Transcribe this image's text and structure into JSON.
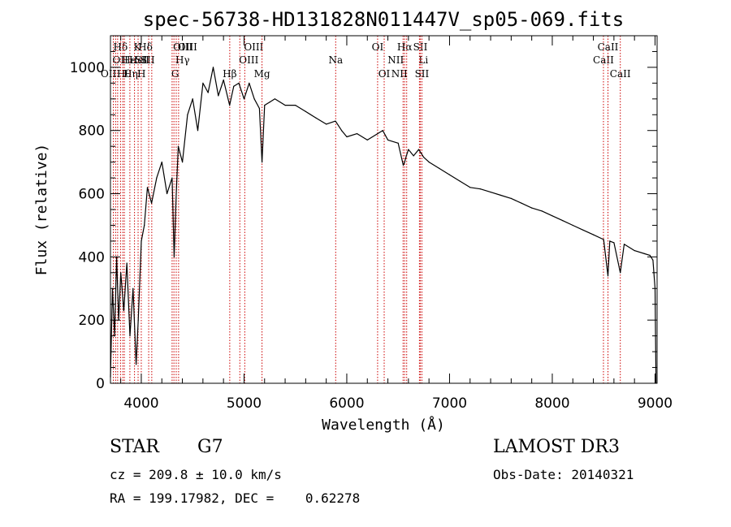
{
  "chart_data": {
    "type": "line",
    "title": "spec-56738-HD131828N011447V_sp05-069.fits",
    "xlabel": "Wavelength (Å)",
    "ylabel": "Flux (relative)",
    "xlim": [
      3700,
      9020
    ],
    "ylim": [
      0,
      1100
    ],
    "xticks": [
      4000,
      5000,
      6000,
      7000,
      8000,
      9000
    ],
    "yticks": [
      0,
      200,
      400,
      600,
      800,
      1000
    ],
    "series": [
      {
        "name": "flux",
        "x": [
          3700,
          3720,
          3740,
          3760,
          3780,
          3800,
          3830,
          3860,
          3890,
          3920,
          3950,
          3970,
          4000,
          4030,
          4060,
          4100,
          4150,
          4200,
          4250,
          4300,
          4320,
          4340,
          4360,
          4400,
          4450,
          4500,
          4550,
          4600,
          4650,
          4700,
          4750,
          4800,
          4860,
          4900,
          4950,
          5000,
          5050,
          5100,
          5150,
          5175,
          5200,
          5250,
          5300,
          5400,
          5500,
          5600,
          5700,
          5800,
          5890,
          5950,
          6000,
          6100,
          6200,
          6300,
          6350,
          6400,
          6500,
          6550,
          6563,
          6580,
          6600,
          6650,
          6700,
          6750,
          6800,
          6900,
          7000,
          7100,
          7200,
          7300,
          7400,
          7500,
          7600,
          7700,
          7800,
          7900,
          8000,
          8100,
          8200,
          8300,
          8400,
          8500,
          8542,
          8560,
          8600,
          8662,
          8700,
          8800,
          8900,
          8950,
          8980,
          9000,
          9010
        ],
        "values": [
          20,
          300,
          150,
          400,
          200,
          350,
          230,
          380,
          150,
          300,
          60,
          200,
          450,
          500,
          620,
          570,
          650,
          700,
          600,
          650,
          400,
          600,
          750,
          700,
          850,
          900,
          800,
          950,
          920,
          1000,
          910,
          960,
          880,
          940,
          950,
          900,
          950,
          900,
          870,
          700,
          880,
          890,
          900,
          880,
          880,
          860,
          840,
          820,
          830,
          800,
          780,
          790,
          770,
          790,
          800,
          770,
          760,
          690,
          700,
          720,
          740,
          720,
          740,
          715,
          700,
          680,
          660,
          640,
          620,
          615,
          605,
          595,
          585,
          570,
          555,
          545,
          530,
          515,
          500,
          485,
          470,
          455,
          340,
          450,
          445,
          350,
          440,
          420,
          410,
          405,
          390,
          300,
          0
        ]
      }
    ],
    "lines": [
      {
        "wl": 3728,
        "label": "OII",
        "row": 2,
        "align": "start"
      },
      {
        "wl": 3750,
        "label": "OII",
        "row": 3,
        "align": "end"
      },
      {
        "wl": 3770,
        "label": "Hθ",
        "row": 3,
        "align": "start"
      },
      {
        "wl": 3798,
        "label": "Hδ",
        "row": 1,
        "align": "middle"
      },
      {
        "wl": 3820,
        "label": "He",
        "row": 2,
        "align": "start"
      },
      {
        "wl": 3835,
        "label": "Hη",
        "row": 3,
        "align": "start"
      },
      {
        "wl": 3889,
        "label": "HeI",
        "row": 2,
        "align": "start"
      },
      {
        "wl": 3934,
        "label": "K",
        "row": 1,
        "align": "start"
      },
      {
        "wl": 3969,
        "label": "H",
        "row": 3,
        "align": "start"
      },
      {
        "wl": 4000,
        "label": "SII",
        "row": 2,
        "align": "start"
      },
      {
        "wl": 4072,
        "label": "SII",
        "row": 2,
        "align": "end"
      },
      {
        "wl": 4102,
        "label": "Hδ",
        "row": 1,
        "align": "end"
      },
      {
        "wl": 4300,
        "label": "G",
        "row": 3,
        "align": "start"
      },
      {
        "wl": 4318,
        "label": "OIII",
        "row": 1,
        "align": "start"
      },
      {
        "wl": 4340,
        "label": "Hγ",
        "row": 2,
        "align": "start"
      },
      {
        "wl": 4363,
        "label": "OIII",
        "row": 1,
        "align": "start"
      },
      {
        "wl": 4861,
        "label": "Hβ",
        "row": 3,
        "align": "middle"
      },
      {
        "wl": 4959,
        "label": "OIII",
        "row": 2,
        "align": "start"
      },
      {
        "wl": 5007,
        "label": "OIII",
        "row": 1,
        "align": "start"
      },
      {
        "wl": 5175,
        "label": "Mg",
        "row": 3,
        "align": "middle"
      },
      {
        "wl": 5892,
        "label": "Na",
        "row": 2,
        "align": "middle"
      },
      {
        "wl": 6300,
        "label": "OI",
        "row": 1,
        "align": "middle"
      },
      {
        "wl": 6364,
        "label": "OI",
        "row": 3,
        "align": "middle"
      },
      {
        "wl": 6548,
        "label": "NII",
        "row": 2,
        "align": "end"
      },
      {
        "wl": 6563,
        "label": "Hα",
        "row": 1,
        "align": "middle"
      },
      {
        "wl": 6583,
        "label": "NII",
        "row": 3,
        "align": "end"
      },
      {
        "wl": 6707,
        "label": "Li",
        "row": 2,
        "align": "start"
      },
      {
        "wl": 6716,
        "label": "SII",
        "row": 1,
        "align": "middle"
      },
      {
        "wl": 6731,
        "label": "SII",
        "row": 3,
        "align": "middle"
      },
      {
        "wl": 8498,
        "label": "CaII",
        "row": 2,
        "align": "middle"
      },
      {
        "wl": 8542,
        "label": "CaII",
        "row": 1,
        "align": "middle"
      },
      {
        "wl": 8662,
        "label": "CaII",
        "row": 3,
        "align": "middle"
      }
    ],
    "line_color": "#cc0000",
    "spectrum_color": "#000000"
  },
  "info": {
    "object_class": "STAR",
    "subclass": "G7",
    "survey": "LAMOST DR3",
    "cz": "cz = 209.8 ± 10.0 km/s",
    "obs_date": "Obs-Date: 20140321",
    "radec": "RA = 199.17982, DEC =    0.62278"
  }
}
